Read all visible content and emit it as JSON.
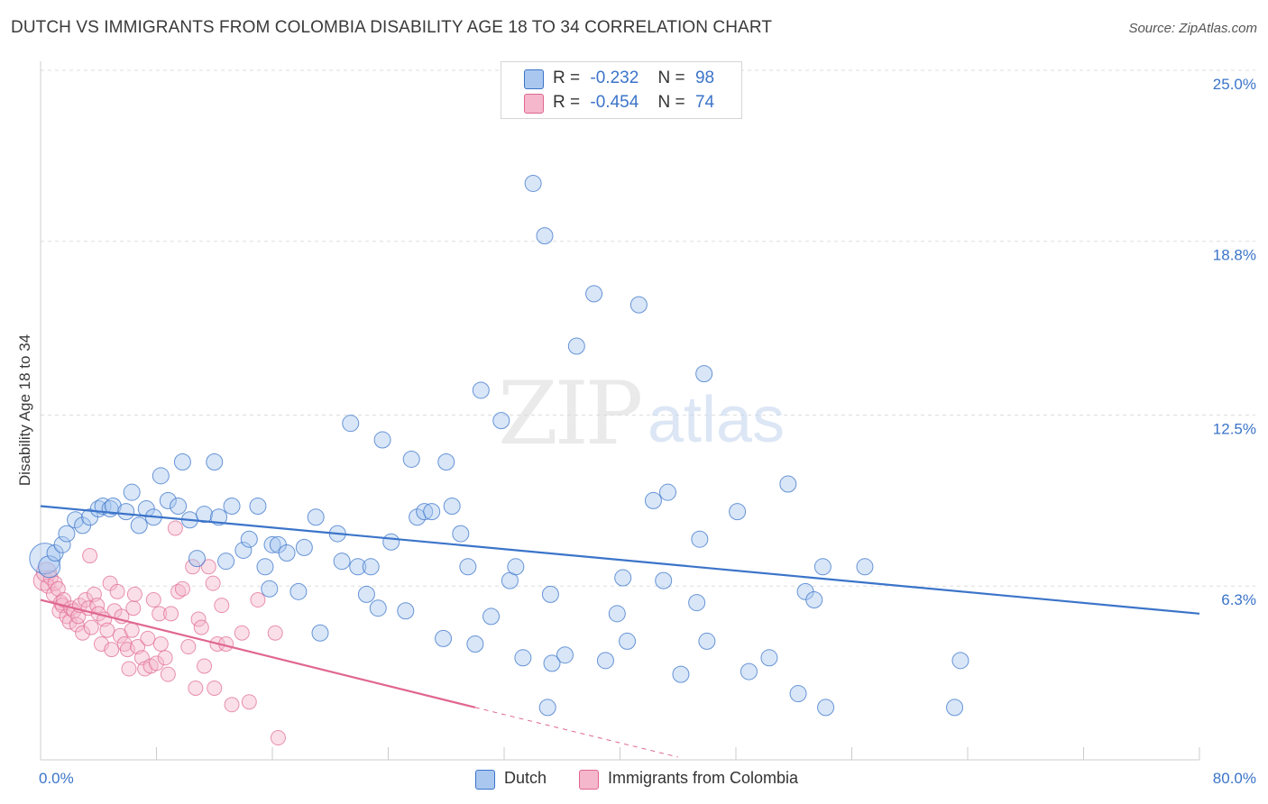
{
  "title": "DUTCH VS IMMIGRANTS FROM COLOMBIA DISABILITY AGE 18 TO 34 CORRELATION CHART",
  "source": "Source: ZipAtlas.com",
  "colors": {
    "blue": "#3b74c9",
    "blue_fill": "#a9c7ef",
    "pink": "#e0678f",
    "pink_fill": "#f5b7cb",
    "grid": "#dddddd"
  },
  "legend_top": [
    {
      "r_label": "R =",
      "r_value": "-0.232",
      "n_label": "N =",
      "n_value": "98"
    },
    {
      "r_label": "R =",
      "r_value": "-0.454",
      "n_label": "N =",
      "n_value": "74"
    }
  ],
  "chart_data": {
    "type": "scatter",
    "title": "DUTCH VS IMMIGRANTS FROM COLOMBIA DISABILITY AGE 18 TO 34 CORRELATION CHART",
    "xlabel": "",
    "ylabel": "Disability Age 18 to 34",
    "xlim": [
      0,
      80
    ],
    "ylim": [
      0,
      25
    ],
    "x_tick_labels": [
      "0.0%",
      "80.0%"
    ],
    "y_ticks": [
      6.3,
      12.5,
      18.8,
      25.0
    ],
    "y_tick_labels": [
      "6.3%",
      "12.5%",
      "18.8%",
      "25.0%"
    ],
    "grid": true,
    "legend_placement": "top-center and bottom",
    "watermark": "ZIPatlas",
    "series": [
      {
        "name": "Dutch",
        "r": -0.232,
        "n": 98,
        "trend": {
          "x": [
            0,
            80
          ],
          "y": [
            9.2,
            5.3
          ]
        },
        "points": [
          [
            0.3,
            7.3
          ],
          [
            0.6,
            7.0
          ],
          [
            1.0,
            7.5
          ],
          [
            1.5,
            7.8
          ],
          [
            1.8,
            8.2
          ],
          [
            2.4,
            8.7
          ],
          [
            2.9,
            8.5
          ],
          [
            3.4,
            8.8
          ],
          [
            4.0,
            9.1
          ],
          [
            4.3,
            9.2
          ],
          [
            4.8,
            9.1
          ],
          [
            5.0,
            9.2
          ],
          [
            5.9,
            9.0
          ],
          [
            6.3,
            9.7
          ],
          [
            6.8,
            8.5
          ],
          [
            7.3,
            9.1
          ],
          [
            7.8,
            8.8
          ],
          [
            8.3,
            10.3
          ],
          [
            8.8,
            9.4
          ],
          [
            9.5,
            9.2
          ],
          [
            9.8,
            10.8
          ],
          [
            10.3,
            8.7
          ],
          [
            10.8,
            7.3
          ],
          [
            11.3,
            8.9
          ],
          [
            12.0,
            10.8
          ],
          [
            12.3,
            8.8
          ],
          [
            12.8,
            7.2
          ],
          [
            13.2,
            9.2
          ],
          [
            14.0,
            7.6
          ],
          [
            14.4,
            8.0
          ],
          [
            15.0,
            9.2
          ],
          [
            15.5,
            7.0
          ],
          [
            15.8,
            6.2
          ],
          [
            16.0,
            7.8
          ],
          [
            16.4,
            7.8
          ],
          [
            17.0,
            7.5
          ],
          [
            17.8,
            6.1
          ],
          [
            18.2,
            7.7
          ],
          [
            19.0,
            8.8
          ],
          [
            19.3,
            4.6
          ],
          [
            20.5,
            8.2
          ],
          [
            20.8,
            7.2
          ],
          [
            21.4,
            12.2
          ],
          [
            21.9,
            7.0
          ],
          [
            22.5,
            6.0
          ],
          [
            22.8,
            7.0
          ],
          [
            23.3,
            5.5
          ],
          [
            23.6,
            11.6
          ],
          [
            24.2,
            7.9
          ],
          [
            25.2,
            5.4
          ],
          [
            25.6,
            10.9
          ],
          [
            26.0,
            8.8
          ],
          [
            26.5,
            9.0
          ],
          [
            27.0,
            9.0
          ],
          [
            27.8,
            4.4
          ],
          [
            28.0,
            10.8
          ],
          [
            28.4,
            9.2
          ],
          [
            29.0,
            8.2
          ],
          [
            29.5,
            7.0
          ],
          [
            30.0,
            4.2
          ],
          [
            30.4,
            13.4
          ],
          [
            31.1,
            5.2
          ],
          [
            31.8,
            12.3
          ],
          [
            32.4,
            6.5
          ],
          [
            32.8,
            7.0
          ],
          [
            33.3,
            3.7
          ],
          [
            34.0,
            20.9
          ],
          [
            34.8,
            19.0
          ],
          [
            35.0,
            1.9
          ],
          [
            35.2,
            6.0
          ],
          [
            35.3,
            3.5
          ],
          [
            36.2,
            3.8
          ],
          [
            37.0,
            15.0
          ],
          [
            38.2,
            16.9
          ],
          [
            39.0,
            3.6
          ],
          [
            39.8,
            5.3
          ],
          [
            40.2,
            6.6
          ],
          [
            40.5,
            4.3
          ],
          [
            41.3,
            16.5
          ],
          [
            42.3,
            9.4
          ],
          [
            43.0,
            6.5
          ],
          [
            43.3,
            9.7
          ],
          [
            44.2,
            3.1
          ],
          [
            45.3,
            5.7
          ],
          [
            45.5,
            8.0
          ],
          [
            45.8,
            14.0
          ],
          [
            46.0,
            4.3
          ],
          [
            48.1,
            9.0
          ],
          [
            48.9,
            3.2
          ],
          [
            50.3,
            3.7
          ],
          [
            51.6,
            10.0
          ],
          [
            52.3,
            2.4
          ],
          [
            52.8,
            6.1
          ],
          [
            53.4,
            5.8
          ],
          [
            54.0,
            7.0
          ],
          [
            54.2,
            1.9
          ],
          [
            56.9,
            7.0
          ],
          [
            63.1,
            1.9
          ],
          [
            63.5,
            3.6
          ]
        ]
      },
      {
        "name": "Immigrants from Colombia",
        "r": -0.454,
        "n": 74,
        "trend": {
          "x": [
            0,
            30
          ],
          "y": [
            5.8,
            1.9
          ]
        },
        "trend_dashed": {
          "x": [
            30,
            44
          ],
          "y": [
            1.9,
            0.1
          ]
        },
        "points": [
          [
            0.2,
            6.5
          ],
          [
            0.4,
            6.8
          ],
          [
            0.5,
            6.3
          ],
          [
            0.7,
            6.6
          ],
          [
            0.9,
            6.0
          ],
          [
            1.0,
            6.4
          ],
          [
            1.2,
            6.2
          ],
          [
            1.3,
            5.4
          ],
          [
            1.4,
            5.7
          ],
          [
            1.5,
            5.6
          ],
          [
            1.6,
            5.8
          ],
          [
            1.8,
            5.2
          ],
          [
            2.0,
            5.0
          ],
          [
            2.1,
            5.5
          ],
          [
            2.3,
            5.4
          ],
          [
            2.5,
            4.9
          ],
          [
            2.6,
            5.2
          ],
          [
            2.7,
            5.6
          ],
          [
            2.9,
            4.6
          ],
          [
            3.1,
            5.8
          ],
          [
            3.3,
            5.5
          ],
          [
            3.4,
            7.4
          ],
          [
            3.5,
            4.8
          ],
          [
            3.7,
            6.0
          ],
          [
            3.9,
            5.6
          ],
          [
            4.0,
            5.3
          ],
          [
            4.2,
            4.2
          ],
          [
            4.4,
            5.1
          ],
          [
            4.6,
            4.7
          ],
          [
            4.8,
            6.4
          ],
          [
            4.9,
            4.0
          ],
          [
            5.1,
            5.4
          ],
          [
            5.3,
            6.1
          ],
          [
            5.5,
            4.5
          ],
          [
            5.6,
            5.2
          ],
          [
            5.8,
            4.2
          ],
          [
            6.0,
            4.0
          ],
          [
            6.1,
            3.3
          ],
          [
            6.3,
            4.7
          ],
          [
            6.4,
            5.5
          ],
          [
            6.5,
            6.0
          ],
          [
            6.7,
            4.1
          ],
          [
            7.0,
            3.7
          ],
          [
            7.2,
            3.3
          ],
          [
            7.4,
            4.4
          ],
          [
            7.6,
            3.4
          ],
          [
            7.8,
            5.8
          ],
          [
            8.0,
            3.5
          ],
          [
            8.2,
            5.3
          ],
          [
            8.3,
            4.2
          ],
          [
            8.6,
            3.7
          ],
          [
            8.8,
            3.1
          ],
          [
            9.0,
            5.3
          ],
          [
            9.3,
            8.4
          ],
          [
            9.5,
            6.1
          ],
          [
            9.8,
            6.2
          ],
          [
            10.2,
            4.1
          ],
          [
            10.5,
            7.0
          ],
          [
            10.7,
            2.6
          ],
          [
            10.9,
            5.1
          ],
          [
            11.1,
            4.8
          ],
          [
            11.3,
            3.4
          ],
          [
            11.6,
            7.0
          ],
          [
            11.9,
            6.4
          ],
          [
            12.0,
            2.6
          ],
          [
            12.2,
            4.2
          ],
          [
            12.5,
            5.6
          ],
          [
            12.8,
            4.2
          ],
          [
            13.2,
            2.0
          ],
          [
            13.9,
            4.6
          ],
          [
            14.4,
            2.1
          ],
          [
            15.0,
            5.8
          ],
          [
            16.2,
            4.6
          ],
          [
            16.4,
            0.8
          ]
        ]
      }
    ]
  },
  "legend_bottom": [
    {
      "label": "Dutch"
    },
    {
      "label": "Immigrants from Colombia"
    }
  ]
}
